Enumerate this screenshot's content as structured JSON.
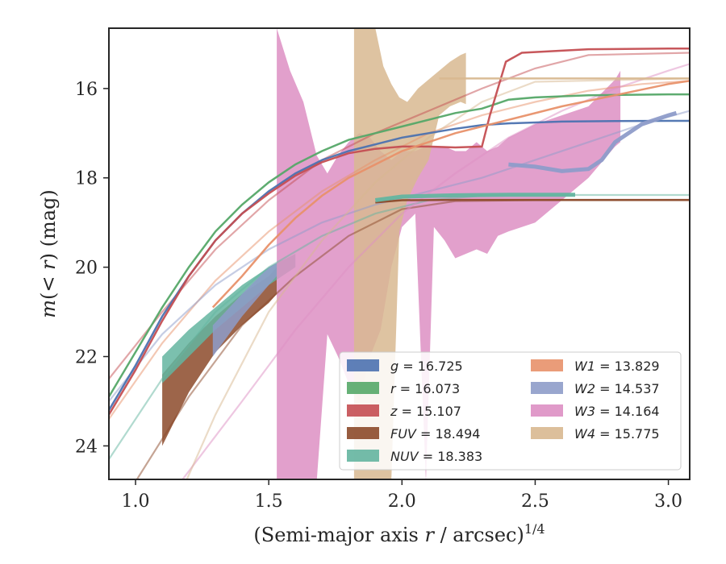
{
  "chart_data": {
    "type": "line",
    "xlabel": "(Semi-major axis r / arcsec)^1/4",
    "xlabel_main": "(Semi-major axis ",
    "xlabel_var": "r",
    "xlabel_rest": " / arcsec)",
    "xlabel_exp": "1/4",
    "ylabel": "m(< r) (mag)",
    "ylabel_m": "m",
    "ylabel_open": "(",
    "ylabel_var": "< r",
    "ylabel_close": ") (mag)",
    "xlim": [
      0.9,
      3.08
    ],
    "ylim": [
      24.75,
      14.65
    ],
    "y_inverted": true,
    "grid": false,
    "legend_position": "lower-right",
    "x_ticks": [
      1.0,
      1.5,
      2.0,
      2.5,
      3.0
    ],
    "x_tick_labels": [
      "1.0",
      "1.5",
      "2.0",
      "2.5",
      "3.0"
    ],
    "y_ticks": [
      16,
      18,
      20,
      22,
      24
    ],
    "y_tick_labels": [
      "16",
      "18",
      "20",
      "22",
      "24"
    ],
    "series": [
      {
        "name": "g = 16.725",
        "label_var": "g",
        "label_value": "= 16.725",
        "color": "#4c72b0",
        "line": [
          [
            0.9,
            23.2
          ],
          [
            1.0,
            22.2
          ],
          [
            1.1,
            21.1
          ],
          [
            1.2,
            20.2
          ],
          [
            1.3,
            19.4
          ],
          [
            1.4,
            18.8
          ],
          [
            1.5,
            18.3
          ],
          [
            1.6,
            17.9
          ],
          [
            1.7,
            17.6
          ],
          [
            1.8,
            17.4
          ],
          [
            1.9,
            17.25
          ],
          [
            2.0,
            17.1
          ],
          [
            2.1,
            17.0
          ],
          [
            2.2,
            16.9
          ],
          [
            2.3,
            16.82
          ],
          [
            2.4,
            16.78
          ],
          [
            2.6,
            16.74
          ],
          [
            2.8,
            16.73
          ],
          [
            3.0,
            16.725
          ],
          [
            3.08,
            16.725
          ]
        ],
        "model": [],
        "band_x": [],
        "band_lo": [],
        "band_hi": []
      },
      {
        "name": "r = 16.073",
        "label_var": "r",
        "label_value": "= 16.073",
        "color": "#55a868",
        "line": [
          [
            0.9,
            22.9
          ],
          [
            1.0,
            21.9
          ],
          [
            1.1,
            20.9
          ],
          [
            1.2,
            20.0
          ],
          [
            1.3,
            19.2
          ],
          [
            1.4,
            18.6
          ],
          [
            1.5,
            18.1
          ],
          [
            1.6,
            17.7
          ],
          [
            1.7,
            17.4
          ],
          [
            1.8,
            17.15
          ],
          [
            1.9,
            17.0
          ],
          [
            2.0,
            16.85
          ],
          [
            2.1,
            16.7
          ],
          [
            2.2,
            16.55
          ],
          [
            2.3,
            16.45
          ],
          [
            2.35,
            16.35
          ],
          [
            2.4,
            16.25
          ],
          [
            2.5,
            16.2
          ],
          [
            2.7,
            16.15
          ],
          [
            3.0,
            16.13
          ],
          [
            3.08,
            16.13
          ]
        ],
        "model": [],
        "band_x": [],
        "band_lo": [],
        "band_hi": []
      },
      {
        "name": "z = 15.107",
        "label_var": "z",
        "label_value": "= 15.107",
        "color": "#c44e52",
        "line": [
          [
            0.9,
            23.3
          ],
          [
            1.0,
            22.3
          ],
          [
            1.1,
            21.2
          ],
          [
            1.2,
            20.2
          ],
          [
            1.3,
            19.4
          ],
          [
            1.4,
            18.8
          ],
          [
            1.5,
            18.35
          ],
          [
            1.6,
            17.95
          ],
          [
            1.7,
            17.65
          ],
          [
            1.8,
            17.45
          ],
          [
            1.9,
            17.35
          ],
          [
            2.0,
            17.3
          ],
          [
            2.1,
            17.3
          ],
          [
            2.2,
            17.32
          ],
          [
            2.3,
            17.3
          ],
          [
            2.33,
            16.6
          ],
          [
            2.36,
            16.0
          ],
          [
            2.39,
            15.4
          ],
          [
            2.45,
            15.2
          ],
          [
            2.7,
            15.12
          ],
          [
            3.0,
            15.107
          ],
          [
            3.08,
            15.107
          ]
        ],
        "model": [
          [
            0.9,
            22.5
          ],
          [
            1.1,
            21.0
          ],
          [
            1.3,
            19.6
          ],
          [
            1.5,
            18.5
          ],
          [
            1.7,
            17.6
          ],
          [
            1.9,
            17.0
          ],
          [
            2.1,
            16.5
          ],
          [
            2.3,
            16.0
          ],
          [
            2.5,
            15.55
          ],
          [
            2.7,
            15.25
          ],
          [
            3.08,
            15.2
          ]
        ],
        "band_x": [],
        "band_lo": [],
        "band_hi": []
      },
      {
        "name": "FUV = 18.494",
        "label_var": "FUV",
        "label_value": "= 18.494",
        "color": "#8c4a2a",
        "line": [
          [
            1.9,
            18.55
          ],
          [
            2.0,
            18.5
          ],
          [
            2.2,
            18.494
          ],
          [
            3.08,
            18.494
          ]
        ],
        "model": [
          [
            1.0,
            24.8
          ],
          [
            1.2,
            22.9
          ],
          [
            1.4,
            21.3
          ],
          [
            1.6,
            20.2
          ],
          [
            1.8,
            19.3
          ],
          [
            2.0,
            18.7
          ],
          [
            2.2,
            18.52
          ],
          [
            2.5,
            18.5
          ],
          [
            3.08,
            18.5
          ]
        ],
        "band_x": [
          1.1,
          1.2,
          1.3,
          1.4,
          1.5,
          1.53
        ],
        "band_lo": [
          24.0,
          22.8,
          21.9,
          21.3,
          20.8,
          20.6
        ],
        "band_hi": [
          22.4,
          21.7,
          21.1,
          20.6,
          20.2,
          20.0
        ]
      },
      {
        "name": "NUV = 18.383",
        "label_var": "NUV",
        "label_value": "= 18.383",
        "color": "#64b5a0",
        "line": [
          [
            1.9,
            18.5
          ],
          [
            2.0,
            18.42
          ],
          [
            2.2,
            18.39
          ],
          [
            2.4,
            18.38
          ],
          [
            2.65,
            18.38
          ]
        ],
        "model": [
          [
            0.9,
            24.3
          ],
          [
            1.1,
            22.5
          ],
          [
            1.3,
            21.0
          ],
          [
            1.5,
            20.0
          ],
          [
            1.7,
            19.3
          ],
          [
            1.9,
            18.8
          ],
          [
            2.1,
            18.5
          ],
          [
            2.3,
            18.4
          ],
          [
            2.6,
            18.383
          ],
          [
            3.08,
            18.383
          ]
        ],
        "band_x": [
          1.1,
          1.2,
          1.3,
          1.4,
          1.5,
          1.6
        ],
        "band_lo": [
          22.6,
          22.0,
          21.4,
          20.9,
          20.4,
          20.0
        ],
        "band_hi": [
          22.0,
          21.4,
          20.9,
          20.4,
          20.0,
          19.7
        ]
      },
      {
        "name": "W1 = 13.829",
        "label_var": "W1",
        "label_value": "= 13.829",
        "color": "#e8916a",
        "line": [
          [
            1.29,
            20.9
          ],
          [
            1.4,
            20.2
          ],
          [
            1.5,
            19.5
          ],
          [
            1.6,
            18.9
          ],
          [
            1.7,
            18.4
          ],
          [
            1.8,
            18.0
          ],
          [
            1.9,
            17.7
          ],
          [
            2.0,
            17.4
          ],
          [
            2.2,
            17.0
          ],
          [
            2.4,
            16.7
          ],
          [
            2.6,
            16.4
          ],
          [
            2.8,
            16.15
          ],
          [
            3.0,
            15.9
          ],
          [
            3.08,
            15.83
          ]
        ],
        "model": [
          [
            0.9,
            23.4
          ],
          [
            1.1,
            21.7
          ],
          [
            1.3,
            20.3
          ],
          [
            1.5,
            19.2
          ],
          [
            1.7,
            18.3
          ],
          [
            1.9,
            17.6
          ],
          [
            2.1,
            17.0
          ],
          [
            2.3,
            16.6
          ],
          [
            2.5,
            16.3
          ],
          [
            2.7,
            16.05
          ],
          [
            2.9,
            15.9
          ],
          [
            3.08,
            15.829
          ]
        ],
        "band_x": [],
        "band_lo": [],
        "band_hi": []
      },
      {
        "name": "W2 = 14.537",
        "label_var": "W2",
        "label_value": "= 14.537",
        "color": "#8e9cc9",
        "line": [
          [
            2.4,
            17.7
          ],
          [
            2.5,
            17.75
          ],
          [
            2.6,
            17.85
          ],
          [
            2.7,
            17.8
          ],
          [
            2.75,
            17.6
          ],
          [
            2.8,
            17.2
          ],
          [
            2.9,
            16.8
          ],
          [
            3.0,
            16.6
          ],
          [
            3.03,
            16.55
          ]
        ],
        "model": [
          [
            0.9,
            23.0
          ],
          [
            1.1,
            21.5
          ],
          [
            1.3,
            20.4
          ],
          [
            1.5,
            19.6
          ],
          [
            1.7,
            19.0
          ],
          [
            1.9,
            18.6
          ],
          [
            2.1,
            18.3
          ],
          [
            2.3,
            18.0
          ],
          [
            2.5,
            17.6
          ],
          [
            2.7,
            17.2
          ],
          [
            2.9,
            16.8
          ],
          [
            3.08,
            16.5
          ]
        ],
        "band_x": [
          1.29,
          1.4,
          1.5,
          1.53
        ],
        "band_lo": [
          22.0,
          21.1,
          20.4,
          20.2
        ],
        "band_hi": [
          21.3,
          20.6,
          20.0,
          19.9
        ]
      },
      {
        "name": "W3 = 14.164",
        "label_var": "W3",
        "label_value": "= 14.164",
        "color": "#dd8fc3",
        "line": [],
        "model": [
          [
            1.17,
            24.8
          ],
          [
            1.4,
            23.0
          ],
          [
            1.6,
            21.4
          ],
          [
            1.8,
            20.0
          ],
          [
            2.0,
            18.8
          ],
          [
            2.2,
            17.9
          ],
          [
            2.4,
            17.1
          ],
          [
            2.6,
            16.5
          ],
          [
            2.8,
            16.0
          ],
          [
            3.0,
            15.6
          ],
          [
            3.08,
            15.45
          ]
        ],
        "band_x": [
          1.53,
          1.58,
          1.63,
          1.68,
          1.72,
          1.76,
          1.8,
          1.84,
          1.88,
          1.92,
          1.96,
          2.0,
          2.05,
          2.09,
          2.12,
          2.16,
          2.2,
          2.24,
          2.28,
          2.32,
          2.36,
          2.4,
          2.5,
          2.6,
          2.7,
          2.8,
          2.82
        ],
        "band_lo": [
          24.8,
          24.8,
          24.8,
          24.8,
          21.5,
          22.0,
          22.6,
          23.0,
          22.0,
          21.4,
          20.0,
          19.1,
          18.8,
          24.8,
          19.1,
          19.4,
          19.8,
          19.7,
          19.6,
          19.7,
          19.3,
          19.2,
          19.0,
          18.5,
          18.0,
          17.3,
          17.2
        ],
        "band_hi": [
          14.65,
          15.6,
          16.3,
          17.5,
          17.9,
          17.5,
          17.2,
          17.0,
          17.1,
          17.4,
          17.6,
          17.4,
          17.4,
          17.3,
          17.3,
          17.3,
          17.4,
          17.4,
          17.2,
          17.4,
          17.3,
          17.1,
          16.8,
          16.6,
          16.4,
          15.8,
          15.6
        ]
      },
      {
        "name": "W4 = 15.775",
        "label_var": "W4",
        "label_value": "= 15.775",
        "color": "#d8b890",
        "line": [
          [
            2.14,
            15.775
          ],
          [
            3.08,
            15.775
          ]
        ],
        "model": [
          [
            1.1,
            26.0
          ],
          [
            1.3,
            23.3
          ],
          [
            1.5,
            21.0
          ],
          [
            1.7,
            19.4
          ],
          [
            1.9,
            18.1
          ],
          [
            2.1,
            17.1
          ],
          [
            2.3,
            16.3
          ],
          [
            2.5,
            15.85
          ],
          [
            3.08,
            15.775
          ]
        ],
        "band_x": [
          1.82,
          1.84,
          1.86,
          1.88,
          1.9,
          1.93,
          1.96,
          1.99,
          2.02,
          2.06,
          2.1,
          2.14,
          2.18,
          2.22,
          2.24
        ],
        "band_lo": [
          24.8,
          24.8,
          24.8,
          24.8,
          24.8,
          24.8,
          24.8,
          19.2,
          18.5,
          18.0,
          17.6,
          16.6,
          16.4,
          16.3,
          16.35
        ],
        "band_hi": [
          14.65,
          14.65,
          14.65,
          14.65,
          14.65,
          15.5,
          15.9,
          16.2,
          16.3,
          16.0,
          15.8,
          15.6,
          15.4,
          15.25,
          15.2
        ]
      }
    ],
    "legend_columns": [
      [
        "g = 16.725",
        "r = 16.073",
        "z = 15.107",
        "FUV = 18.494",
        "NUV = 18.383"
      ],
      [
        "W1 = 13.829",
        "W2 = 14.537",
        "W3 = 14.164",
        "W4 = 15.775"
      ]
    ]
  }
}
